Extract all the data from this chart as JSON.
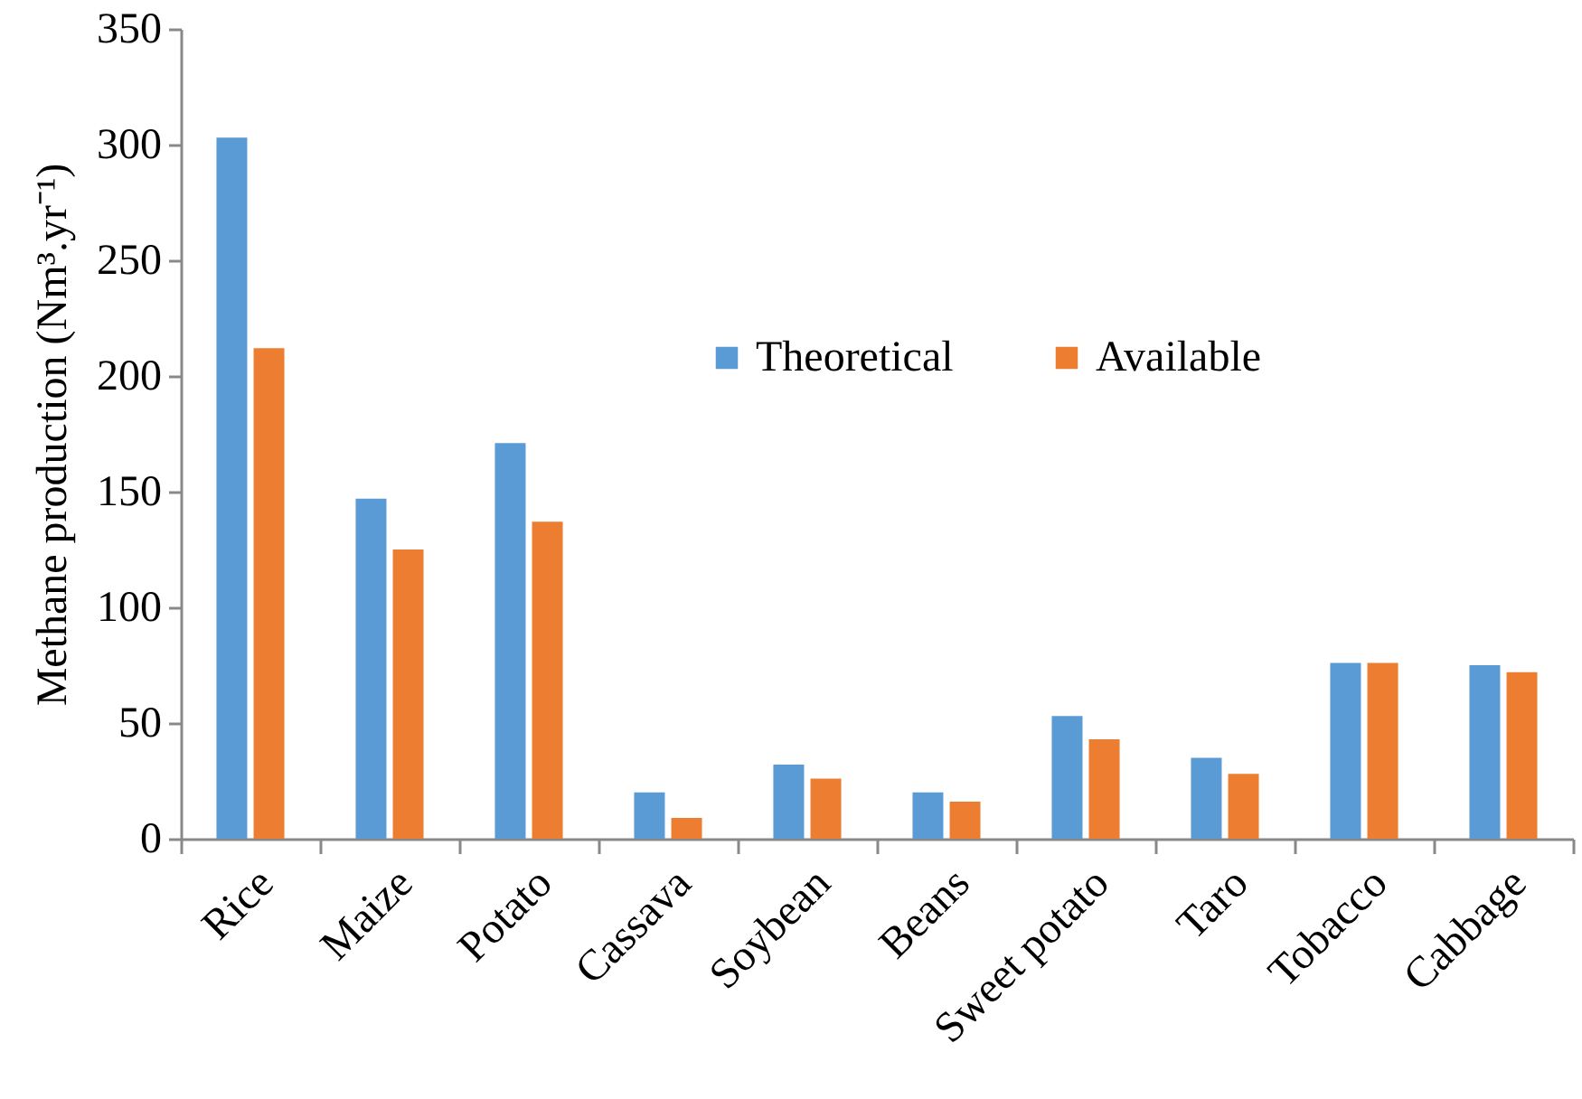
{
  "chart_data": {
    "type": "bar",
    "ylabel": "Methane production (Nm³.yr⁻¹)",
    "categories": [
      "Rice",
      "Maize",
      "Potato",
      "Cassava",
      "Soybean",
      "Beans",
      "Sweet potato",
      "Taro",
      "Tobacco",
      "Cabbage"
    ],
    "series": [
      {
        "name": "Theoretical",
        "color": "#5b9bd5",
        "values": [
          303,
          147,
          171,
          20,
          32,
          20,
          53,
          35,
          76,
          75
        ]
      },
      {
        "name": "Available",
        "color": "#ed7d31",
        "values": [
          212,
          125,
          137,
          9,
          26,
          16,
          43,
          28,
          76,
          72
        ]
      }
    ],
    "ylim": [
      0,
      350
    ],
    "yticks": [
      0,
      50,
      100,
      150,
      200,
      250,
      300,
      350
    ],
    "grid": false,
    "legend": "top right"
  }
}
